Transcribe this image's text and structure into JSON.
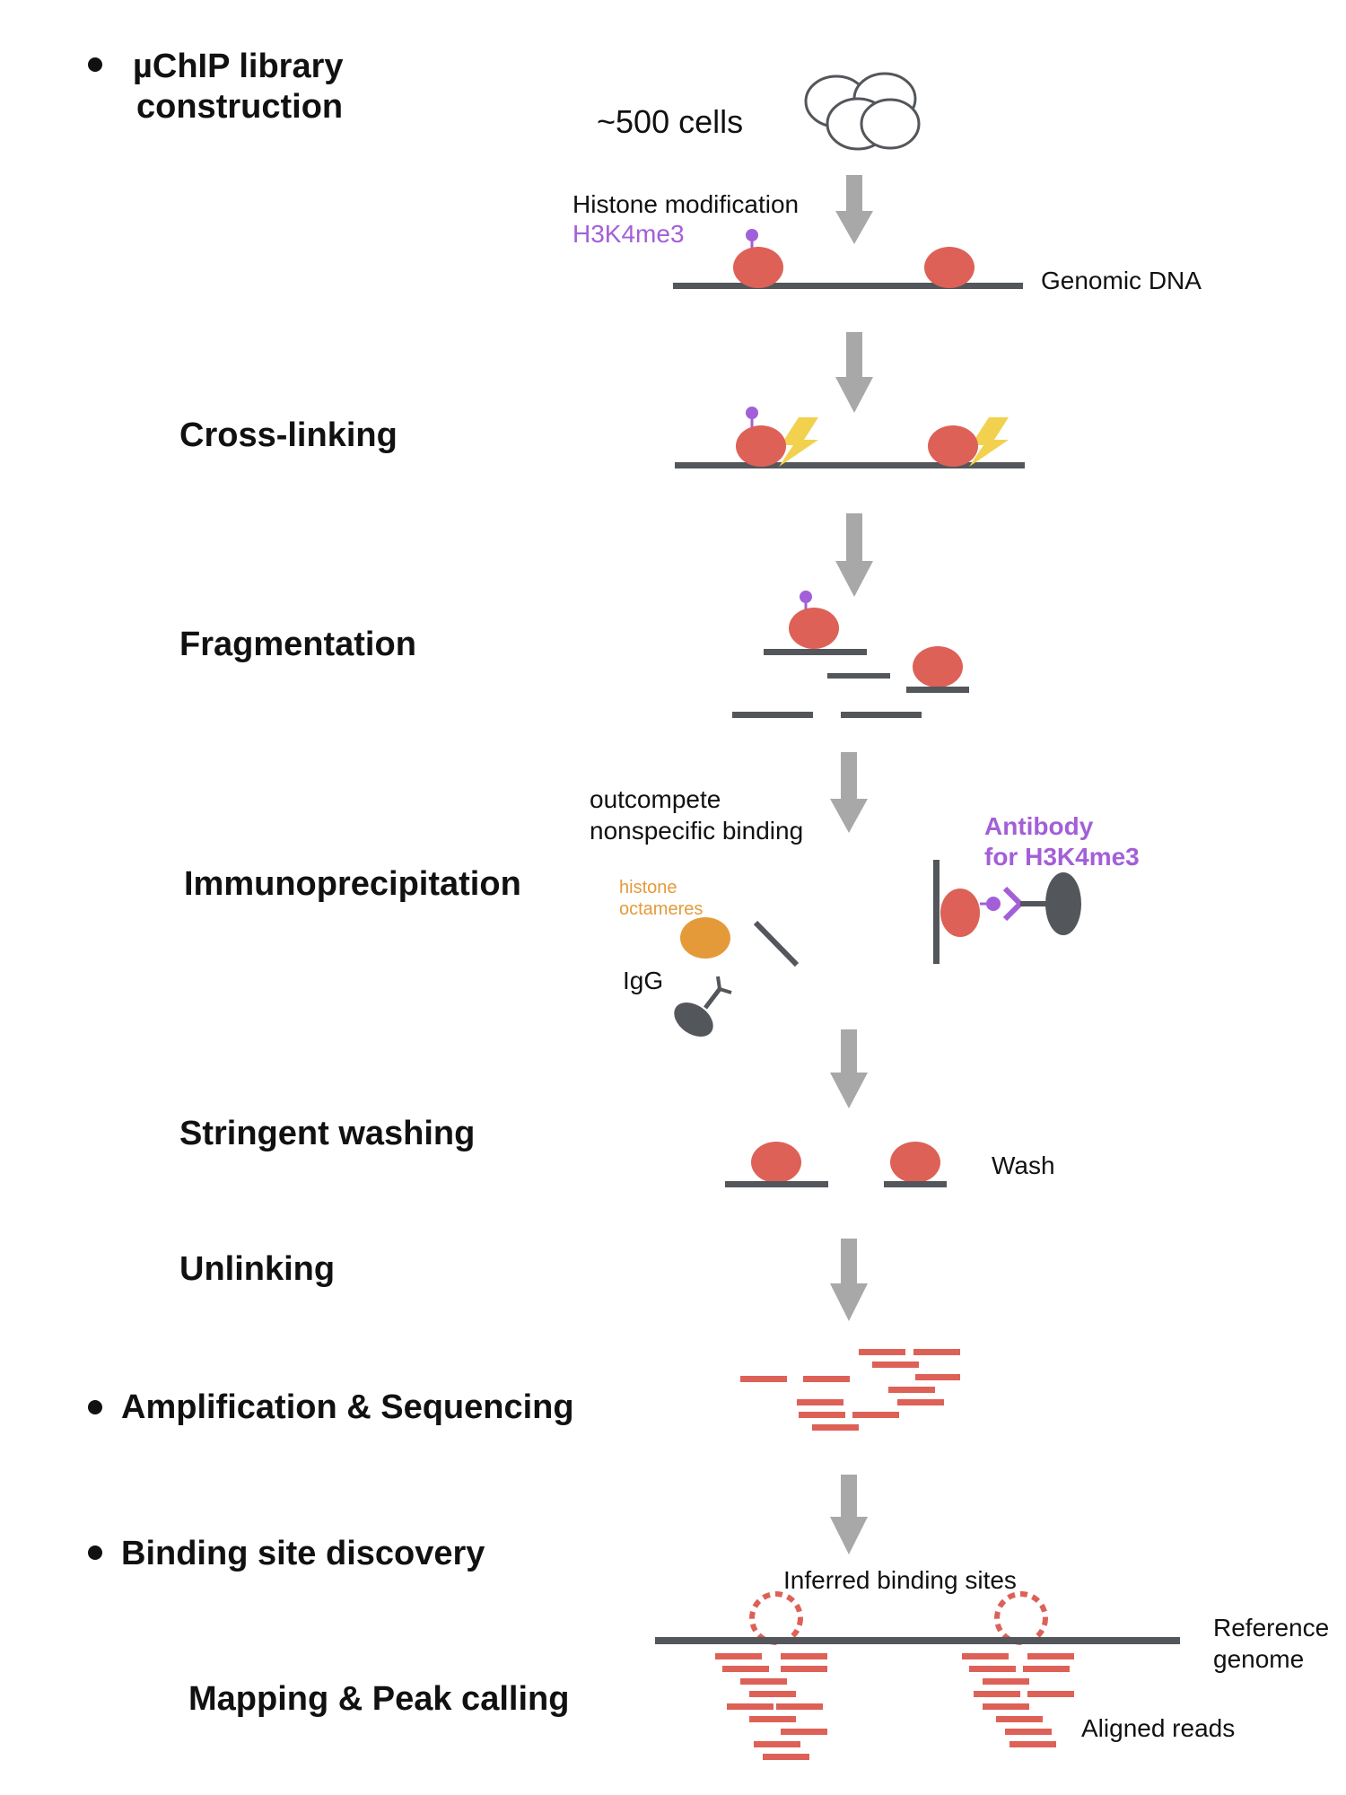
{
  "colors": {
    "nucleosome": "#dd6157",
    "dna": "#53565a",
    "arrow": "#a8a8a8",
    "modification": "#a35fd8",
    "crosslink": "#f2d14e",
    "histone_octamer": "#e59a3a",
    "antibody": "#53565a",
    "reads": "#dd6157"
  },
  "sections": {
    "library_construction": "µChIP library construction",
    "amplification": "Amplification & Sequencing",
    "binding_discovery": "Binding site discovery"
  },
  "stages": {
    "crosslinking": "Cross-linking",
    "fragmentation": "Fragmentation",
    "immunoprecipitation": "Immunoprecipitation",
    "washing": "Stringent washing",
    "unlinking": "Unlinking",
    "mapping": "Mapping & Peak calling"
  },
  "labels": {
    "cells": "~500 cells",
    "histone_modification": "Histone modification",
    "h3k4me3": "H3K4me3",
    "genomic_dna": "Genomic DNA",
    "outcompete_line1": "outcompete",
    "outcompete_line2": "nonspecific binding",
    "histone_line1": "histone",
    "histone_line2": "octameres",
    "igg": "IgG",
    "antibody_line1": "Antibody",
    "antibody_line2": "for H3K4me3",
    "wash": "Wash",
    "inferred_sites": "Inferred binding sites",
    "reference_line1": "Reference",
    "reference_line2": "genome",
    "aligned_reads": "Aligned reads"
  }
}
